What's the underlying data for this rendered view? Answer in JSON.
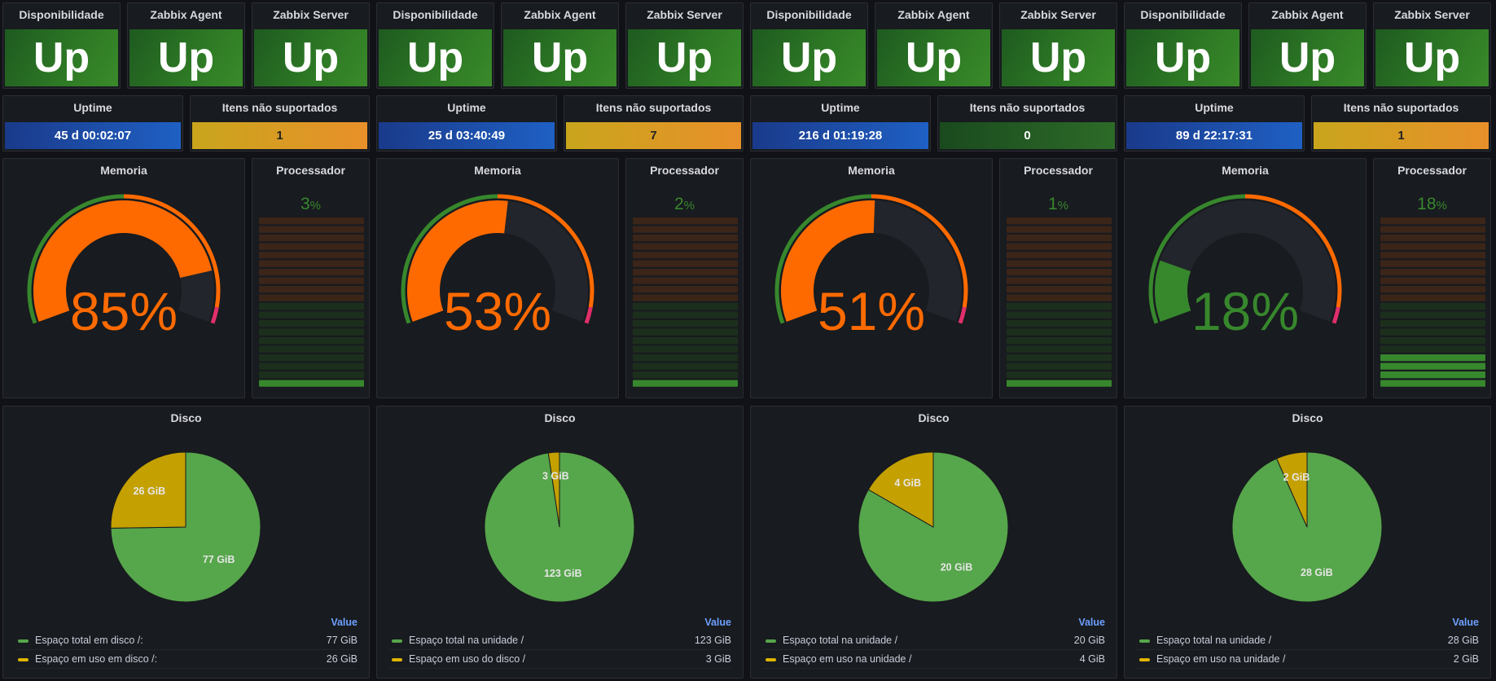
{
  "colors": {
    "up_green": "#2e7a25",
    "pie_green": "#56a64b",
    "pie_yellow": "#c4a000",
    "gauge_orange": "#ff6a00",
    "gauge_green": "#37872d",
    "gauge_track": "#22252b",
    "cpu_orange": "#3b2418",
    "cpu_green_dim": "#1c2f1c",
    "cpu_green": "#37872d"
  },
  "labels": {
    "availability": "Disponibilidade",
    "agent": "Zabbix Agent",
    "server": "Zabbix Server",
    "uptime": "Uptime",
    "unsupported": "Itens não suportados",
    "memory": "Memoria",
    "cpu": "Processador",
    "disk": "Disco",
    "legend_header": "Value"
  },
  "hosts": [
    {
      "availability": "Up",
      "agent": "Up",
      "server": "Up",
      "uptime": "45 d 00:02:07",
      "unsupported": "1",
      "unsupported_color": "amber",
      "memory_pct": 85,
      "memory_text": "85%",
      "cpu_value": "3",
      "cpu_unit": "%",
      "cpu_pct": 3,
      "disk": {
        "total_label": "Espaço total em disco /:",
        "used_label": "Espaço em uso em disco /:",
        "total_value": "77 GiB",
        "used_value": "26 GiB",
        "total": 77,
        "used": 26
      }
    },
    {
      "availability": "Up",
      "agent": "Up",
      "server": "Up",
      "uptime": "25 d 03:40:49",
      "unsupported": "7",
      "unsupported_color": "amber",
      "memory_pct": 53,
      "memory_text": "53%",
      "cpu_value": "2",
      "cpu_unit": "%",
      "cpu_pct": 2,
      "disk": {
        "total_label": "Espaço total na unidade /",
        "used_label": "Espaço em uso do disco /",
        "total_value": "123 GiB",
        "used_value": "3 GiB",
        "total": 123,
        "used": 3
      }
    },
    {
      "availability": "Up",
      "agent": "Up",
      "server": "Up",
      "uptime": "216 d 01:19:28",
      "unsupported": "0",
      "unsupported_color": "green",
      "memory_pct": 51,
      "memory_text": "51%",
      "cpu_value": "1",
      "cpu_unit": "%",
      "cpu_pct": 1,
      "disk": {
        "total_label": "Espaço total na unidade /",
        "used_label": "Espaço em uso na unidade /",
        "total_value": "20 GiB",
        "used_value": "4 GiB",
        "total": 20,
        "used": 4
      }
    },
    {
      "availability": "Up",
      "agent": "Up",
      "server": "Up",
      "uptime": "89 d 22:17:31",
      "unsupported": "1",
      "unsupported_color": "amber",
      "memory_pct": 18,
      "memory_text": "18%",
      "cpu_value": "18",
      "cpu_unit": "%",
      "cpu_pct": 18,
      "disk": {
        "total_label": "Espaço total na unidade /",
        "used_label": "Espaço em uso na unidade /",
        "total_value": "28 GiB",
        "used_value": "2 GiB",
        "total": 28,
        "used": 2
      }
    }
  ]
}
